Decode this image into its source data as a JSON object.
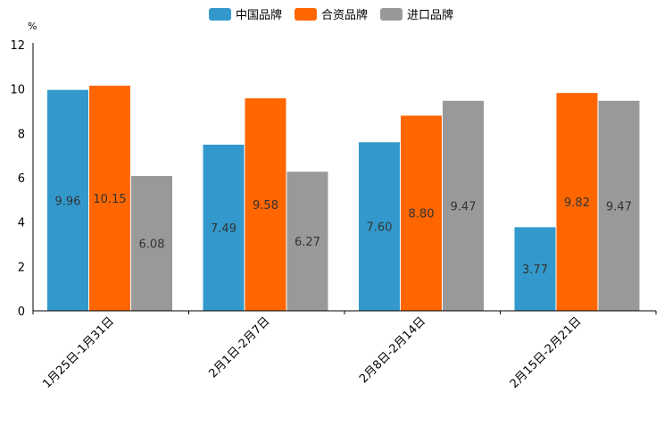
{
  "chart_data": {
    "type": "bar",
    "title": "",
    "xlabel": "",
    "ylabel": "%",
    "ylim": [
      0,
      12
    ],
    "yticks": [
      0,
      2,
      4,
      6,
      8,
      10,
      12
    ],
    "categories": [
      "1月25日-1月31日",
      "2月1日-2月7日",
      "2月8日-2月14日",
      "2月15日-2月21日"
    ],
    "legend_position": "top-center",
    "grid": false,
    "series": [
      {
        "name": "中国品牌",
        "color": "#3399cc",
        "values": [
          9.96,
          7.49,
          7.6,
          3.77
        ]
      },
      {
        "name": "合资品牌",
        "color": "#ff6600",
        "values": [
          10.15,
          9.58,
          8.8,
          9.82
        ]
      },
      {
        "name": "进口品牌",
        "color": "#999999",
        "values": [
          6.08,
          6.27,
          9.47,
          9.47
        ]
      }
    ]
  }
}
